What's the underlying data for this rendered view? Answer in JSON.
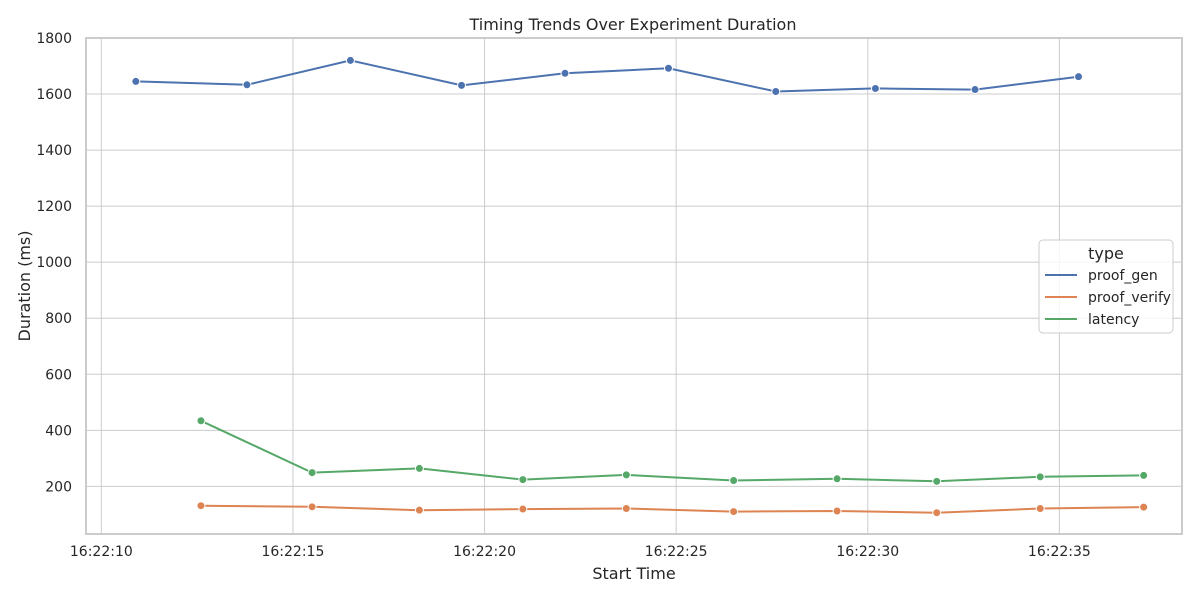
{
  "chart_data": {
    "type": "line",
    "title": "Timing Trends Over Experiment Duration",
    "xlabel": "Start Time",
    "ylabel": "Duration (ms)",
    "xlim": [
      "16:22:09.6",
      "16:22:38.2"
    ],
    "ylim": [
      30,
      1800
    ],
    "x_ticks": [
      "16:22:10",
      "16:22:15",
      "16:22:20",
      "16:22:25",
      "16:22:30",
      "16:22:35"
    ],
    "y_ticks": [
      200,
      400,
      600,
      800,
      1000,
      1200,
      1400,
      1600,
      1800
    ],
    "grid": true,
    "legend": {
      "title": "type",
      "placement": "center-right"
    },
    "series": [
      {
        "name": "proof_gen",
        "color": "#4c72b0",
        "points": [
          [
            "16:22:10.9",
            1645
          ],
          [
            "16:22:13.8",
            1633
          ],
          [
            "16:22:16.5",
            1720
          ],
          [
            "16:22:19.4",
            1631
          ],
          [
            "16:22:22.1",
            1674
          ],
          [
            "16:22:24.8",
            1692
          ],
          [
            "16:22:27.6",
            1609
          ],
          [
            "16:22:30.2",
            1620
          ],
          [
            "16:22:32.8",
            1616
          ],
          [
            "16:22:35.5",
            1662
          ]
        ]
      },
      {
        "name": "proof_verify",
        "color": "#dd8452",
        "points": [
          [
            "16:22:12.6",
            131
          ],
          [
            "16:22:15.5",
            127
          ],
          [
            "16:22:18.3",
            115
          ],
          [
            "16:22:21.0",
            119
          ],
          [
            "16:22:23.7",
            121
          ],
          [
            "16:22:26.5",
            110
          ],
          [
            "16:22:29.2",
            112
          ],
          [
            "16:22:31.8",
            106
          ],
          [
            "16:22:34.5",
            121
          ],
          [
            "16:22:37.2",
            126
          ]
        ]
      },
      {
        "name": "latency",
        "color": "#55a868",
        "points": [
          [
            "16:22:12.6",
            434
          ],
          [
            "16:22:15.5",
            249
          ],
          [
            "16:22:18.3",
            264
          ],
          [
            "16:22:21.0",
            224
          ],
          [
            "16:22:23.7",
            241
          ],
          [
            "16:22:26.5",
            221
          ],
          [
            "16:22:29.2",
            227
          ],
          [
            "16:22:31.8",
            218
          ],
          [
            "16:22:34.5",
            234
          ],
          [
            "16:22:37.2",
            239
          ]
        ]
      }
    ]
  }
}
